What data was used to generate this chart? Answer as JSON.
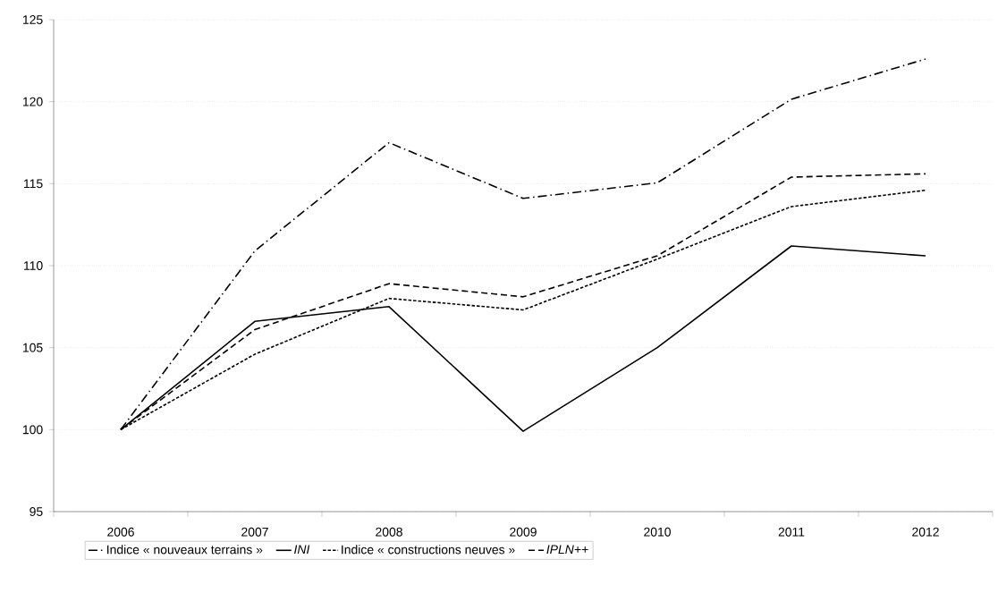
{
  "chart_data": {
    "type": "line",
    "categories": [
      "2006",
      "2007",
      "2008",
      "2009",
      "2010",
      "2011",
      "2012"
    ],
    "series": [
      {
        "name": "Indice « nouveaux terrains »",
        "color": "#000000",
        "line_style": "dashdot",
        "values": [
          100,
          110.9,
          117.5,
          114.1,
          115.05,
          120.15,
          122.6
        ]
      },
      {
        "name": "*INI*",
        "color": "#000000",
        "line_style": "solid",
        "values": [
          100,
          106.6,
          107.5,
          99.9,
          105.0,
          111.2,
          110.6
        ]
      },
      {
        "name": "Indice « constructions neuves »",
        "color": "#000000",
        "line_style": "short dashed",
        "values": [
          100,
          104.6,
          108.0,
          107.3,
          110.4,
          113.6,
          114.6
        ]
      },
      {
        "name": "*IPLN++*",
        "color": "#000000",
        "line_style": "dashed",
        "values": [
          100,
          106.1,
          108.9,
          108.1,
          110.6,
          115.4,
          115.6
        ]
      }
    ],
    "ylim": [
      95,
      125
    ],
    "yticks": [
      95,
      100,
      105,
      110,
      115,
      120,
      125
    ],
    "grid": "y",
    "legend": "bottom",
    "marker": "none"
  }
}
